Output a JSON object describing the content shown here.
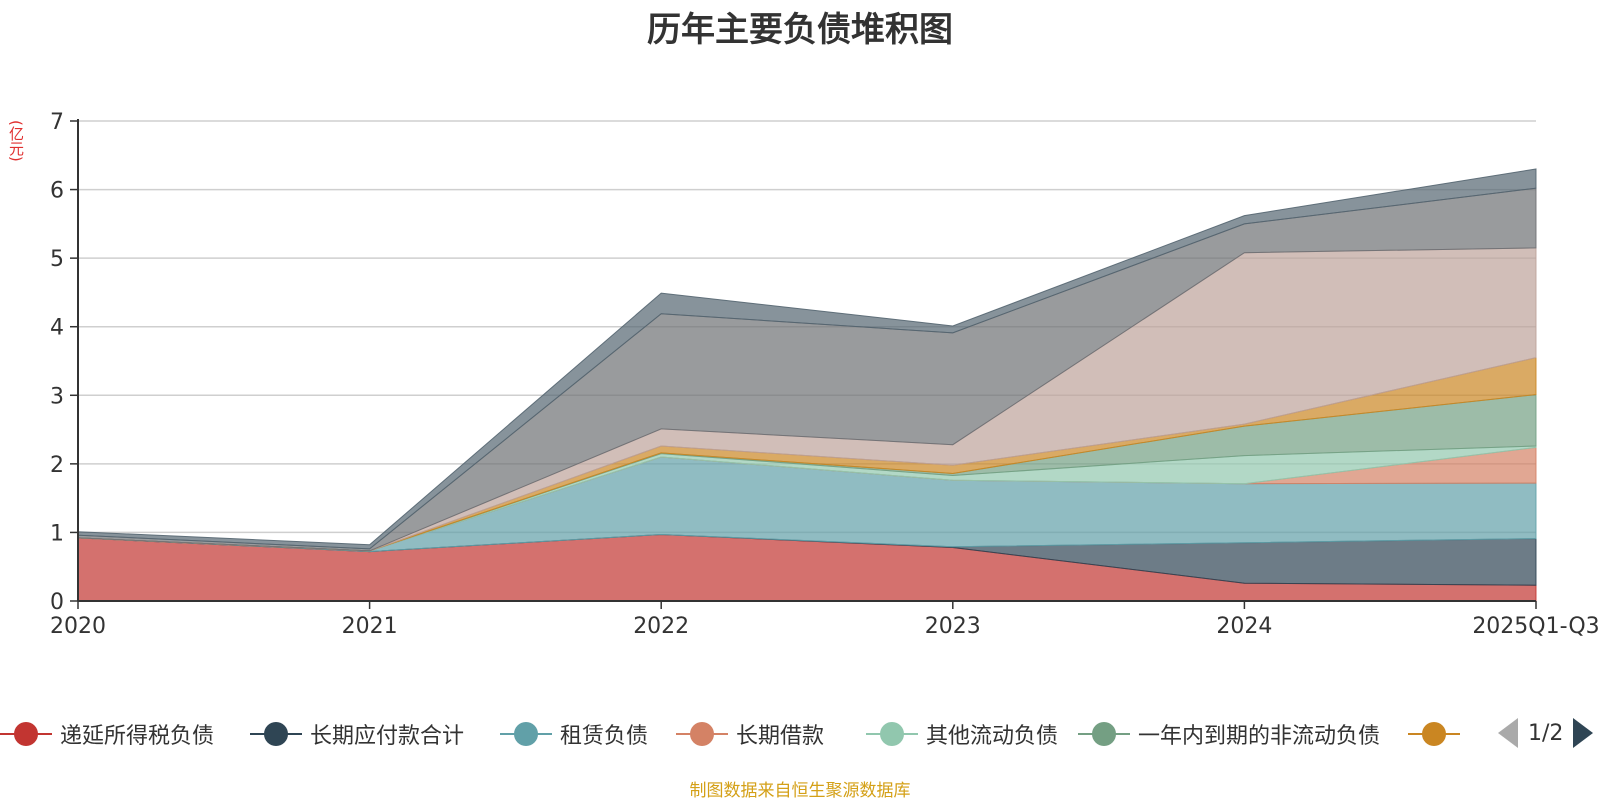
{
  "chart_data": {
    "type": "area",
    "stacked": true,
    "title": "历年主要负债堆积图",
    "unit": "(亿元)",
    "categories": [
      "2020",
      "2021",
      "2022",
      "2023",
      "2024",
      "2025Q1-Q3"
    ],
    "ylim": [
      0,
      7
    ],
    "yticks": [
      "0",
      "1",
      "2",
      "3",
      "4",
      "5",
      "6",
      "7"
    ],
    "grid": true,
    "series": [
      {
        "name": "递延所得税负债",
        "color": "#c23531",
        "values": [
          0.92,
          0.72,
          0.97,
          0.78,
          0.26,
          0.23
        ]
      },
      {
        "name": "长期应付款合计",
        "color": "#2f4554",
        "values": [
          0,
          0,
          0,
          0.01,
          0.59,
          0.68
        ]
      },
      {
        "name": "租赁负债",
        "color": "#61a0a8",
        "values": [
          0,
          0.01,
          1.13,
          0.97,
          0.86,
          0.81
        ]
      },
      {
        "name": "长期借款",
        "color": "#d48265",
        "values": [
          0,
          0,
          0,
          0,
          0,
          0.52
        ]
      },
      {
        "name": "其他流动负债",
        "color": "#91c7ae",
        "values": [
          0,
          0,
          0.05,
          0.07,
          0.41,
          0.02
        ]
      },
      {
        "name": "一年内到期的非流动负债",
        "color": "#749f83",
        "values": [
          0,
          0,
          0.01,
          0.03,
          0.43,
          0.75
        ]
      },
      {
        "name": "",
        "color": "#ca8622",
        "values": [
          0,
          0,
          0.1,
          0.12,
          0.03,
          0.54
        ]
      },
      {
        "name": "",
        "color": "#bda29a",
        "values": [
          0,
          0,
          0.25,
          0.3,
          2.5,
          1.6
        ]
      },
      {
        "name": "",
        "color": "#6e7074",
        "values": [
          0.04,
          0.03,
          1.68,
          1.63,
          0.42,
          0.87
        ]
      },
      {
        "name": "",
        "color": "#546570",
        "values": [
          0.05,
          0.06,
          0.3,
          0.1,
          0.12,
          0.28
        ]
      }
    ]
  },
  "legend": {
    "visible_items": [
      "递延所得税负债",
      "长期应付款合计",
      "租赁负债",
      "长期借款",
      "其他流动负债",
      "一年内到期的非流动负债",
      ""
    ],
    "page": "1/2"
  },
  "source_note": "制图数据来自恒生聚源数据库"
}
